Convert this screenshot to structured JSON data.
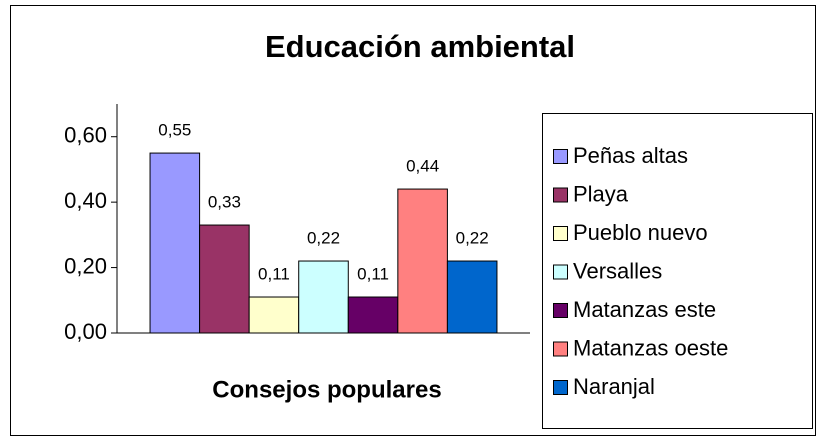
{
  "chart_data": {
    "type": "bar",
    "title": "Educación ambiental",
    "x_label": "Consejos populares",
    "categories": [
      null
    ],
    "series": [
      {
        "name": "Peñas altas",
        "color": "#9999ff",
        "values": [
          0.55
        ],
        "value_labels": [
          "0,55"
        ]
      },
      {
        "name": "Playa",
        "color": "#993366",
        "values": [
          0.33
        ],
        "value_labels": [
          "0,33"
        ]
      },
      {
        "name": "Pueblo nuevo",
        "color": "#ffffcc",
        "values": [
          0.11
        ],
        "value_labels": [
          "0,11"
        ]
      },
      {
        "name": "Versalles",
        "color": "#ccffff",
        "values": [
          0.22
        ],
        "value_labels": [
          "0,22"
        ]
      },
      {
        "name": "Matanzas este",
        "color": "#660066",
        "values": [
          0.11
        ],
        "value_labels": [
          "0,11"
        ]
      },
      {
        "name": "Matanzas oeste",
        "color": "#ff8080",
        "values": [
          0.44
        ],
        "value_labels": [
          "0,44"
        ]
      },
      {
        "name": "Naranjal",
        "color": "#0066cc",
        "values": [
          0.22
        ],
        "value_labels": [
          "0,22"
        ]
      }
    ],
    "ylim": [
      0,
      0.7
    ],
    "yticks": [
      {
        "value": 0,
        "label": "0,00"
      },
      {
        "value": 0.2,
        "label": "0,20"
      },
      {
        "value": 0.4,
        "label": "0,40"
      },
      {
        "value": 0.6,
        "label": "0,60"
      }
    ],
    "grid": false,
    "legend": "right"
  }
}
